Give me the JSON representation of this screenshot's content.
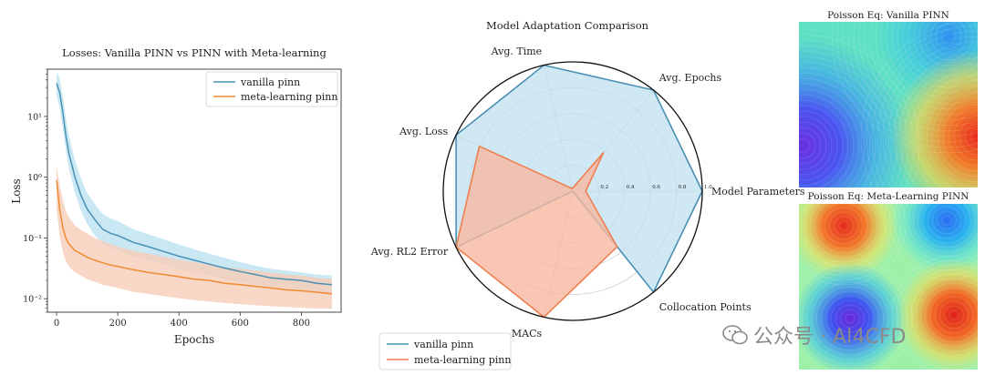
{
  "chart_data": [
    {
      "type": "line",
      "title": "Losses: Vanilla PINN vs PINN with Meta-learning",
      "xlabel": "Epochs",
      "ylabel": "Loss",
      "yscale": "log",
      "xlim": [
        0,
        900
      ],
      "ylim": [
        0.006,
        60
      ],
      "xticks": [
        0,
        200,
        400,
        600,
        800
      ],
      "yticks": [
        0.01,
        0.1,
        1,
        10
      ],
      "ytick_labels": [
        "10⁻²",
        "10⁻¹",
        "10⁰",
        "10¹"
      ],
      "legend": "top-right",
      "series": [
        {
          "name": "vanilla pinn",
          "color": "#4a90b4",
          "band": "#bfe4f2",
          "x": [
            0,
            10,
            20,
            30,
            40,
            60,
            80,
            100,
            125,
            150,
            175,
            200,
            250,
            300,
            350,
            400,
            450,
            500,
            550,
            600,
            650,
            700,
            750,
            800,
            850,
            900
          ],
          "y": [
            35,
            25,
            12,
            5,
            2.5,
            1.0,
            0.5,
            0.3,
            0.2,
            0.14,
            0.12,
            0.11,
            0.085,
            0.072,
            0.06,
            0.05,
            0.043,
            0.037,
            0.032,
            0.028,
            0.025,
            0.022,
            0.021,
            0.02,
            0.018,
            0.017
          ],
          "lower": [
            22,
            14,
            6.5,
            2.8,
            1.4,
            0.55,
            0.28,
            0.17,
            0.11,
            0.08,
            0.07,
            0.062,
            0.05,
            0.043,
            0.037,
            0.031,
            0.027,
            0.024,
            0.021,
            0.019,
            0.017,
            0.016,
            0.015,
            0.014,
            0.013,
            0.012
          ],
          "upper": [
            55,
            42,
            22,
            9.5,
            4.8,
            1.9,
            0.95,
            0.55,
            0.36,
            0.25,
            0.21,
            0.19,
            0.14,
            0.115,
            0.095,
            0.078,
            0.065,
            0.055,
            0.047,
            0.04,
            0.035,
            0.031,
            0.029,
            0.027,
            0.025,
            0.024
          ]
        },
        {
          "name": "meta-learning pinn",
          "color": "#ef8a2f",
          "band": "#f8cdb8",
          "x": [
            0,
            10,
            20,
            30,
            40,
            60,
            80,
            100,
            125,
            150,
            175,
            200,
            250,
            300,
            350,
            400,
            450,
            500,
            550,
            600,
            650,
            700,
            750,
            800,
            850,
            900
          ],
          "y": [
            0.9,
            0.3,
            0.15,
            0.1,
            0.08,
            0.062,
            0.055,
            0.048,
            0.043,
            0.039,
            0.036,
            0.034,
            0.03,
            0.027,
            0.025,
            0.023,
            0.021,
            0.02,
            0.018,
            0.017,
            0.016,
            0.015,
            0.014,
            0.0135,
            0.0128,
            0.012
          ],
          "lower": [
            0.3,
            0.11,
            0.06,
            0.042,
            0.034,
            0.027,
            0.024,
            0.021,
            0.019,
            0.017,
            0.016,
            0.015,
            0.013,
            0.012,
            0.011,
            0.0102,
            0.0095,
            0.009,
            0.0085,
            0.0081,
            0.0078,
            0.0075,
            0.0073,
            0.0071,
            0.0069,
            0.0068
          ],
          "upper": [
            1.5,
            0.75,
            0.42,
            0.28,
            0.22,
            0.16,
            0.135,
            0.12,
            0.1,
            0.088,
            0.08,
            0.072,
            0.062,
            0.055,
            0.049,
            0.044,
            0.04,
            0.036,
            0.033,
            0.031,
            0.029,
            0.027,
            0.025,
            0.024,
            0.022,
            0.021
          ]
        }
      ]
    },
    {
      "type": "radar",
      "title": "Model Adaptation Comparison",
      "axes": [
        "Model Parameters",
        "Avg. Epochs",
        "Avg. Time",
        "Avg. Loss",
        "Avg. RL2 Error",
        "MACs",
        "Collocation Points"
      ],
      "rticks": [
        0.2,
        0.4,
        0.6,
        0.8,
        1.0
      ],
      "rtick_labels": [
        "0.2",
        "0.4",
        "0.6",
        "0.8",
        "1.0"
      ],
      "legend": "bottom-left",
      "series": [
        {
          "name": "vanilla pinn",
          "color": "#4a90b4",
          "fill": "#bfe0ef",
          "values": [
            1.0,
            1.0,
            1.0,
            1.0,
            1.0,
            0.0,
            1.0
          ]
        },
        {
          "name": "meta-learning pinn",
          "color": "#ef7f50",
          "fill": "#f6b8a0",
          "values": [
            0.1,
            0.38,
            0.02,
            0.8,
            1.0,
            1.0,
            0.55
          ]
        }
      ]
    },
    {
      "type": "heatmap",
      "title": "Poisson Eq: Vanilla PINN",
      "colormap": "rainbow"
    },
    {
      "type": "heatmap",
      "title": "Poisson Eq: Meta-Learning PINN",
      "colormap": "rainbow"
    }
  ],
  "watermark": {
    "text": "公众号 · AI4CFD"
  }
}
